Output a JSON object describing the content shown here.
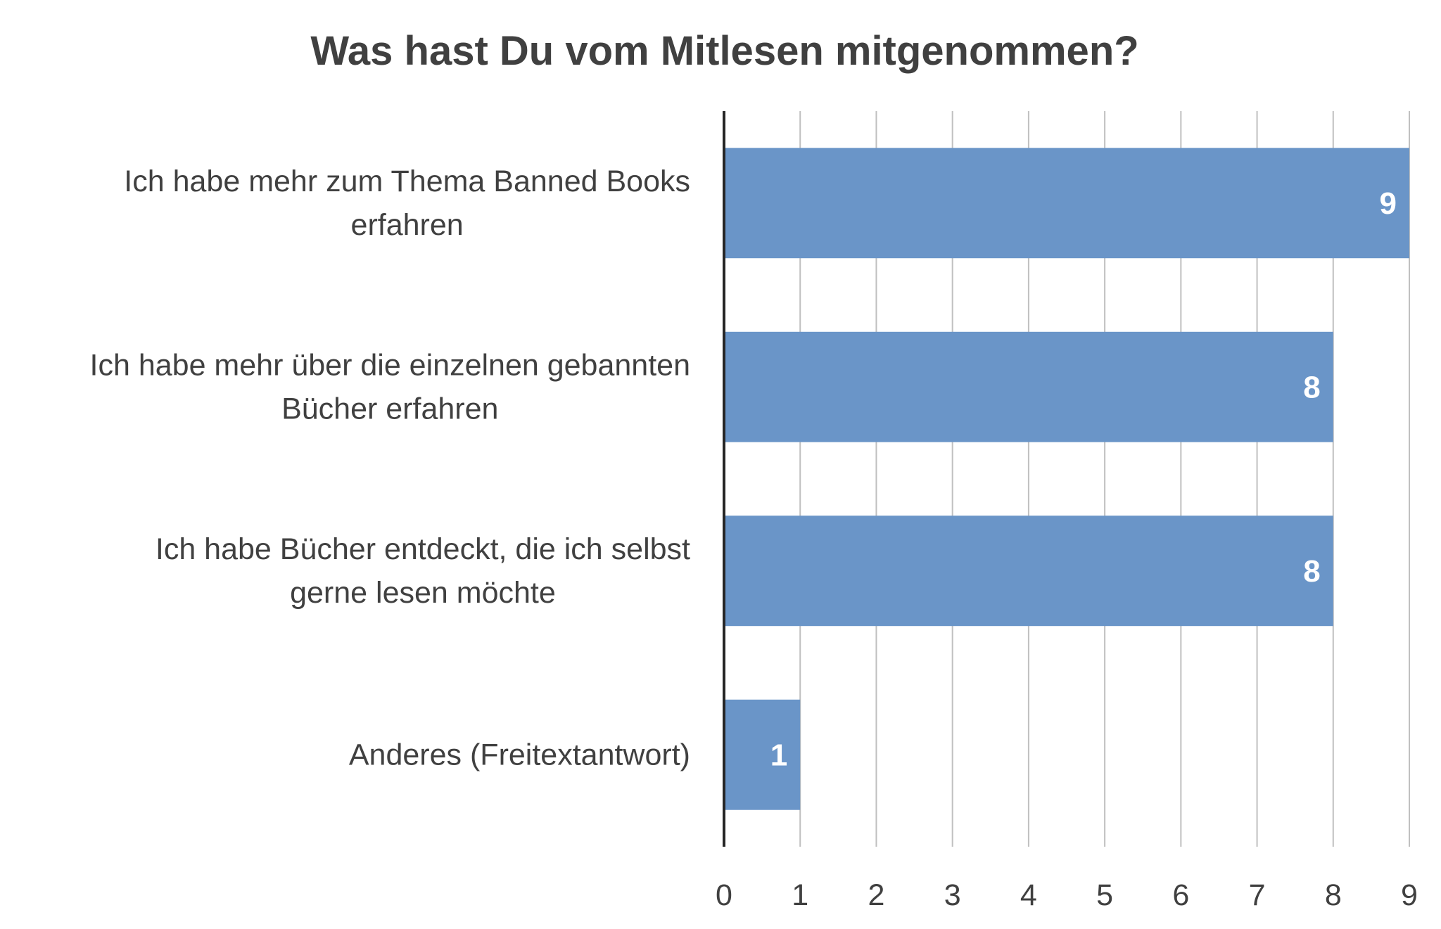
{
  "chart_data": {
    "type": "bar",
    "orientation": "horizontal",
    "title": "Was hast Du vom Mitlesen mitgenommen?",
    "categories": [
      [
        "Ich habe mehr zum Thema Banned Books",
        "erfahren"
      ],
      [
        "Ich habe mehr über die einzelnen gebannten",
        "Bücher erfahren"
      ],
      [
        "Ich habe Bücher entdeckt, die ich selbst",
        "gerne lesen möchte"
      ],
      [
        "Anderes (Freitextantwort)"
      ]
    ],
    "values": [
      9,
      8,
      8,
      1
    ],
    "xlim": [
      0,
      9
    ],
    "xticks": [
      0,
      1,
      2,
      3,
      4,
      5,
      6,
      7,
      8,
      9
    ],
    "xlabel": "",
    "ylabel": "",
    "grid": true,
    "data_labels": true,
    "bar_color": "#6a95c8",
    "legend": "none"
  }
}
